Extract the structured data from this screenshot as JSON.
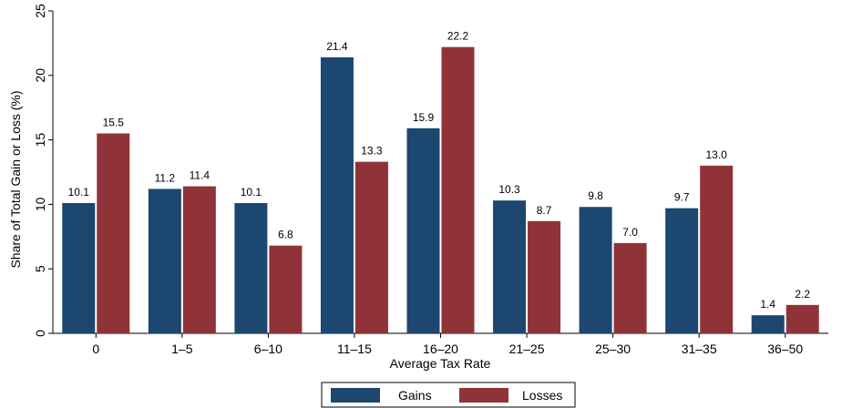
{
  "chart_data": {
    "type": "bar",
    "categories": [
      "0",
      "1–5",
      "6–10",
      "11–15",
      "16–20",
      "21–25",
      "25–30",
      "31–35",
      "36–50"
    ],
    "series": [
      {
        "name": "Gains",
        "values": [
          10.1,
          11.2,
          10.1,
          21.4,
          15.9,
          10.3,
          9.8,
          9.7,
          1.4
        ],
        "color": "#1b4770"
      },
      {
        "name": "Losses",
        "values": [
          15.5,
          11.4,
          6.8,
          13.3,
          22.2,
          8.7,
          7.0,
          13.0,
          2.2
        ],
        "color": "#903339"
      }
    ],
    "data_labels": {
      "Gains": [
        "10.1",
        "11.2",
        "10.1",
        "21.4",
        "15.9",
        "10.3",
        "9.8",
        "9.7",
        "1.4"
      ],
      "Losses": [
        "15.5",
        "11.4",
        "6.8",
        "13.3",
        "22.2",
        "8.7",
        "7.0",
        "13.0",
        "2.2"
      ]
    },
    "title": "",
    "xlabel": "Average Tax Rate",
    "ylabel": "Share of Total Gain or Loss (%)",
    "ylim": [
      0,
      25
    ],
    "yticks": [
      0,
      5,
      10,
      15,
      20,
      25
    ],
    "ytick_labels": [
      "0",
      "5",
      "10",
      "15",
      "20",
      "25"
    ],
    "grid": false,
    "legend": {
      "position": "bottom",
      "entries": [
        "Gains",
        "Losses"
      ]
    }
  }
}
